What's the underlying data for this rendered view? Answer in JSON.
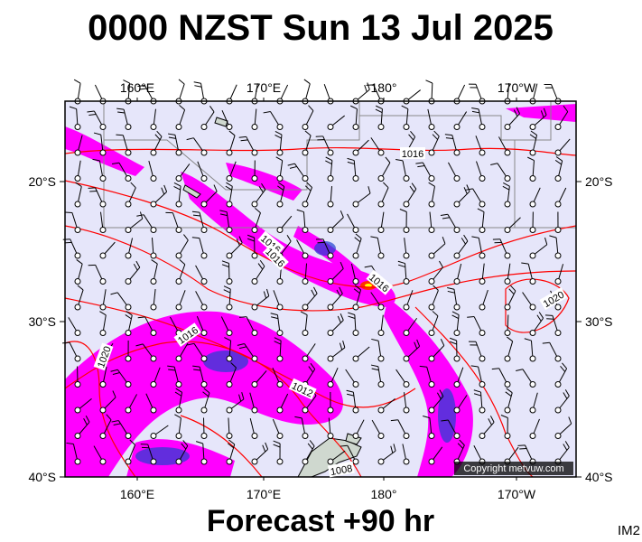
{
  "header": {
    "title": "0000 NZST Sun 13 Jul 2025"
  },
  "map": {
    "top_labels": [
      "160°E",
      "170°E",
      "180°",
      "170°W"
    ],
    "bottom_labels": [
      "160°E",
      "170°E",
      "180°",
      "170°W"
    ],
    "left_labels": [
      "20°S",
      "30°S",
      "40°S"
    ],
    "right_labels": [
      "20°S",
      "30°S",
      "40°S"
    ],
    "isobar_labels": [
      "1016",
      "1016",
      "1016",
      "1016",
      "1020",
      "1016",
      "1020",
      "1012",
      "1008"
    ],
    "copyright": "Copyright metvuw.com"
  },
  "footer": {
    "forecast": "Forecast +90 hr",
    "code": "IM2"
  }
}
